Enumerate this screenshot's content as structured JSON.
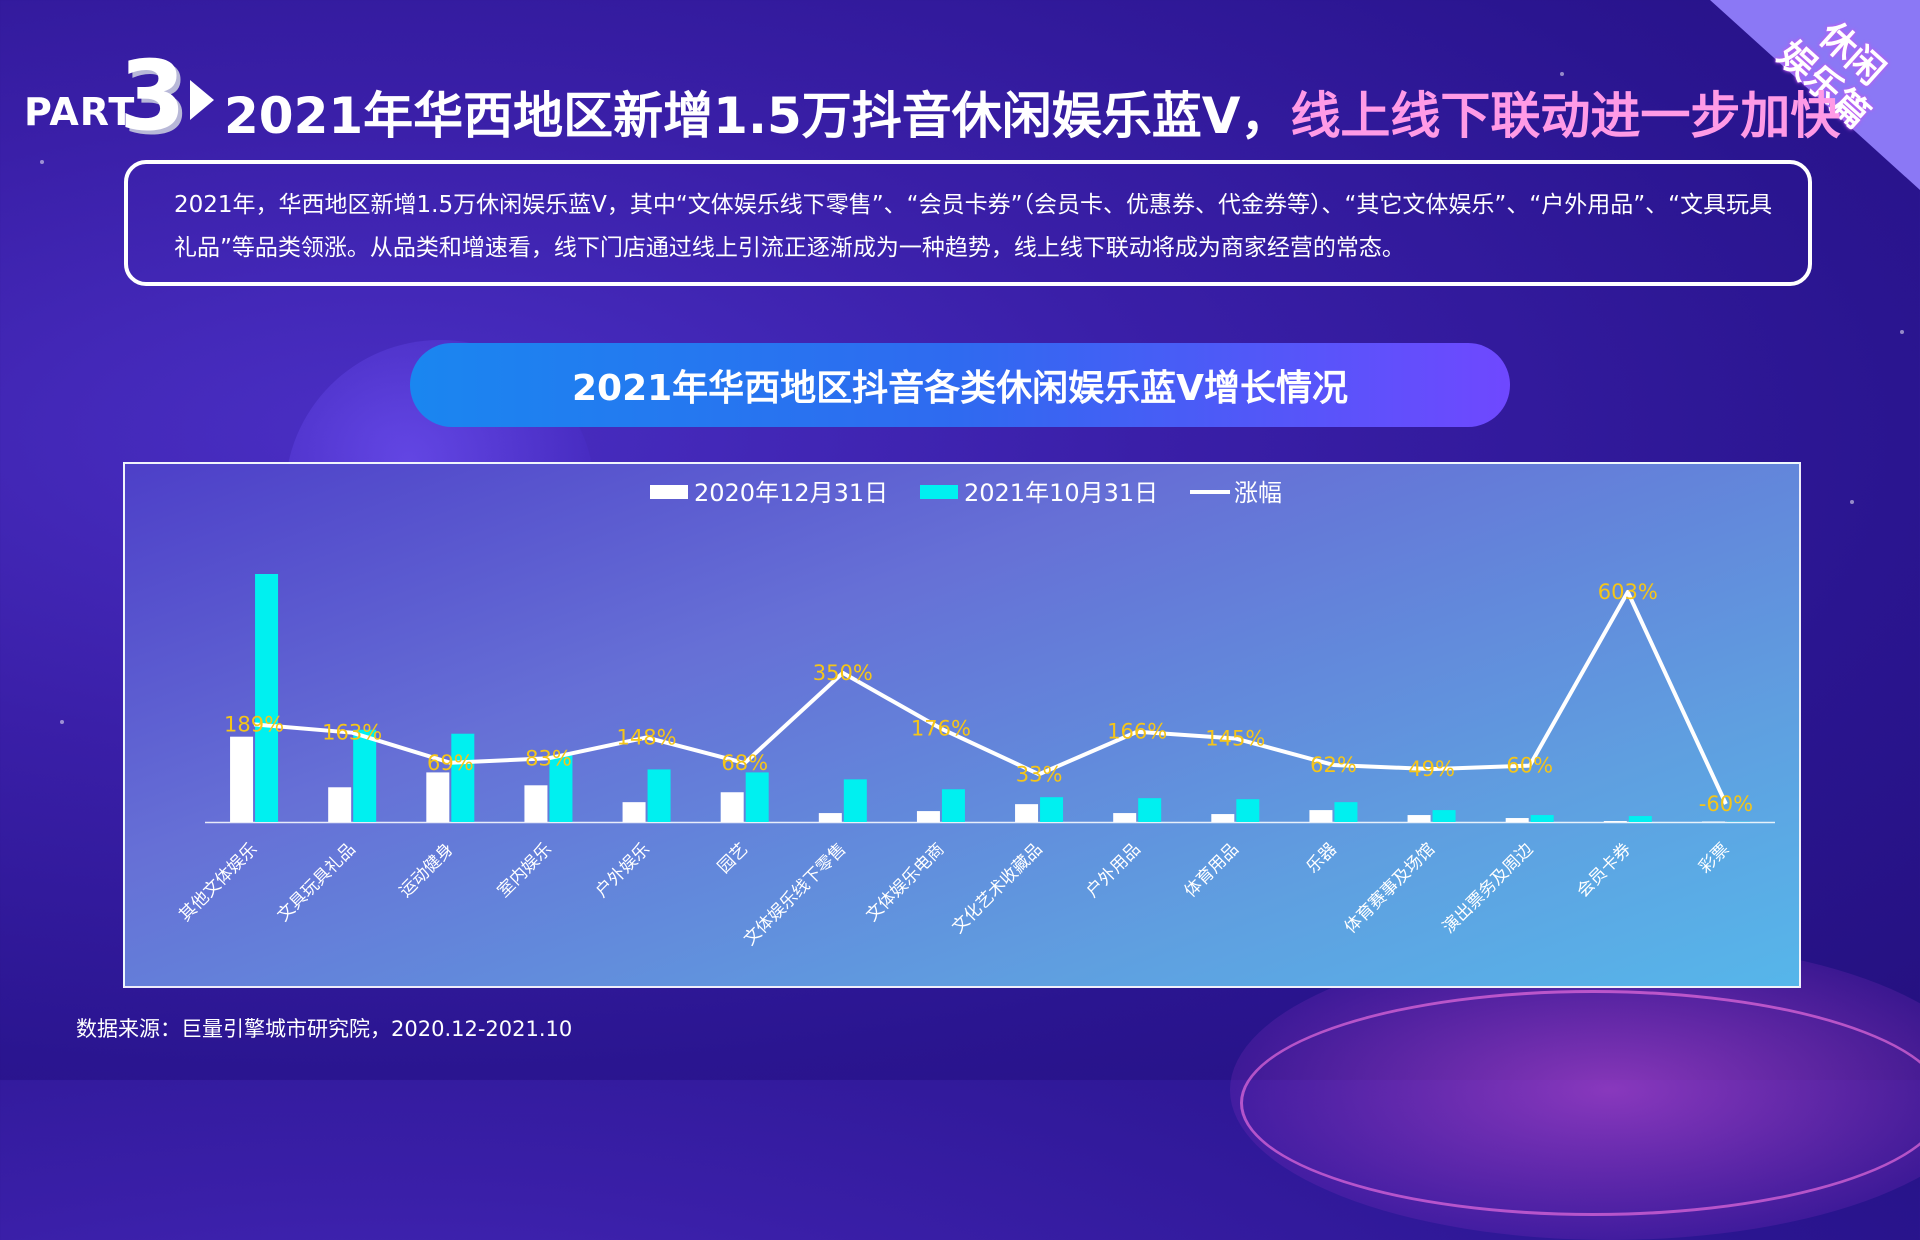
{
  "corner_badge": [
    "休闲",
    "娱乐篇"
  ],
  "header": {
    "part_label": "PART",
    "part_number": "3",
    "title_white": "2021年华西地区新增1.5万抖音休闲娱乐蓝V，",
    "title_pink": "线上线下联动进一步加快"
  },
  "description": "2021年，华西地区新增1.5万休闲娱乐蓝V，其中“文体娱乐线下零售”、“会员卡券”（会员卡、优惠券、代金券等）、“其它文体娱乐”、“户外用品”、“文具玩具礼品”等品类领涨。从品类和增速看，线下门店通过线上引流正逐渐成为一种趋势，线上线下联动将成为商家经营的常态。",
  "chart_title": "2021年华西地区抖音各类休闲娱乐蓝V增长情况",
  "source": "数据来源：巨量引擎城市研究院，2020.12-2021.10",
  "colors": {
    "bar_2020": "#ffffff",
    "bar_2021": "#00f0f0",
    "line": "#ffffff",
    "label": "#f5c518",
    "title_pink": "#ff9ae6"
  },
  "chart_data": {
    "type": "bar",
    "categories": [
      "其他文体娱乐",
      "文具玩具礼品",
      "运动健身",
      "室内娱乐",
      "户外娱乐",
      "园艺",
      "文体娱乐线下零售",
      "文体娱乐电商",
      "文化艺术收藏品",
      "户外用品",
      "体育用品",
      "乐器",
      "体育赛事及场馆",
      "演出票务及周边",
      "会员卡券",
      "彩票"
    ],
    "series": [
      {
        "name": "2020年12月31日",
        "type": "bar",
        "values": [
          86,
          35,
          50,
          37,
          20,
          30,
          9,
          11,
          18,
          9,
          8,
          12,
          7,
          4,
          1,
          0.5
        ]
      },
      {
        "name": "2021年10月31日",
        "type": "bar",
        "values": [
          250,
          93,
          89,
          67,
          53,
          50,
          43,
          33,
          25,
          24,
          23,
          20,
          12,
          7,
          6,
          0.2
        ]
      },
      {
        "name": "涨幅",
        "type": "line",
        "axis": "secondary",
        "values": [
          189,
          163,
          69,
          83,
          148,
          68,
          350,
          176,
          33,
          166,
          145,
          62,
          49,
          60,
          603,
          -60
        ],
        "labels": [
          "189%",
          "163%",
          "69%",
          "83%",
          "148%",
          "68%",
          "350%",
          "176%",
          "33%",
          "166%",
          "145%",
          "62%",
          "49%",
          "60%",
          "603%",
          "-60%"
        ]
      }
    ],
    "legend_position": "top-center",
    "grid": false
  }
}
